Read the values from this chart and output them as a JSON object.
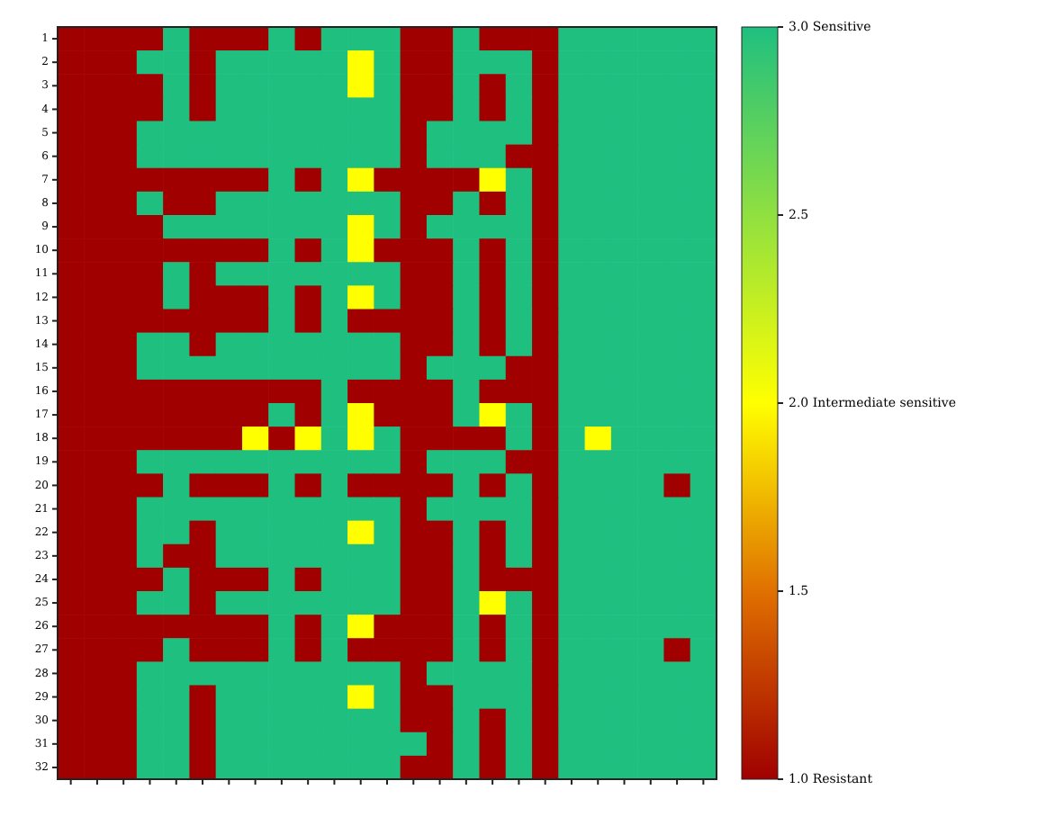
{
  "chart_data": {
    "type": "heatmap",
    "categories": [
      null,
      null,
      null,
      null,
      null,
      null,
      null,
      null,
      null,
      null,
      null,
      null,
      null,
      null,
      null,
      null,
      null,
      null,
      null,
      null,
      null,
      null,
      null,
      null,
      null
    ],
    "y_categories": [
      "1",
      "2",
      "3",
      "4",
      "5",
      "6",
      "7",
      "8",
      "9",
      "10",
      "11",
      "12",
      "13",
      "14",
      "15",
      "16",
      "17",
      "18",
      "19",
      "20",
      "21",
      "22",
      "23",
      "24",
      "25",
      "26",
      "27",
      "28",
      "29",
      "30",
      "31",
      "32"
    ],
    "cells": [
      [
        1,
        1,
        1,
        1,
        3,
        1,
        1,
        1,
        3,
        1,
        3,
        3,
        3,
        1,
        1,
        3,
        1,
        1,
        1,
        3,
        3,
        3,
        3,
        3,
        3
      ],
      [
        1,
        1,
        1,
        3,
        3,
        1,
        3,
        3,
        3,
        3,
        3,
        2,
        3,
        1,
        1,
        3,
        3,
        3,
        1,
        3,
        3,
        3,
        3,
        3,
        3
      ],
      [
        1,
        1,
        1,
        1,
        3,
        1,
        3,
        3,
        3,
        3,
        3,
        2,
        3,
        1,
        1,
        3,
        1,
        3,
        1,
        3,
        3,
        3,
        3,
        3,
        3
      ],
      [
        1,
        1,
        1,
        1,
        3,
        1,
        3,
        3,
        3,
        3,
        3,
        3,
        3,
        1,
        1,
        3,
        1,
        3,
        1,
        3,
        3,
        3,
        3,
        3,
        3
      ],
      [
        1,
        1,
        1,
        3,
        3,
        3,
        3,
        3,
        3,
        3,
        3,
        3,
        3,
        1,
        3,
        3,
        3,
        3,
        1,
        3,
        3,
        3,
        3,
        3,
        3
      ],
      [
        1,
        1,
        1,
        3,
        3,
        3,
        3,
        3,
        3,
        3,
        3,
        3,
        3,
        1,
        3,
        3,
        3,
        1,
        1,
        3,
        3,
        3,
        3,
        3,
        3
      ],
      [
        1,
        1,
        1,
        1,
        1,
        1,
        1,
        1,
        3,
        1,
        3,
        2,
        1,
        1,
        1,
        1,
        2,
        3,
        1,
        3,
        3,
        3,
        3,
        3,
        3
      ],
      [
        1,
        1,
        1,
        3,
        1,
        1,
        3,
        3,
        3,
        3,
        3,
        3,
        3,
        1,
        1,
        3,
        1,
        3,
        1,
        3,
        3,
        3,
        3,
        3,
        3
      ],
      [
        1,
        1,
        1,
        1,
        3,
        3,
        3,
        3,
        3,
        3,
        3,
        2,
        3,
        1,
        3,
        3,
        3,
        3,
        1,
        3,
        3,
        3,
        3,
        3,
        3
      ],
      [
        1,
        1,
        1,
        1,
        1,
        1,
        1,
        1,
        3,
        1,
        3,
        2,
        1,
        1,
        1,
        3,
        1,
        3,
        1,
        3,
        3,
        3,
        3,
        3,
        3
      ],
      [
        1,
        1,
        1,
        1,
        3,
        1,
        3,
        3,
        3,
        3,
        3,
        3,
        3,
        1,
        1,
        3,
        1,
        3,
        1,
        3,
        3,
        3,
        3,
        3,
        3
      ],
      [
        1,
        1,
        1,
        1,
        3,
        1,
        1,
        1,
        3,
        1,
        3,
        2,
        3,
        1,
        1,
        3,
        1,
        3,
        1,
        3,
        3,
        3,
        3,
        3,
        3
      ],
      [
        1,
        1,
        1,
        1,
        1,
        1,
        1,
        1,
        3,
        1,
        3,
        1,
        1,
        1,
        1,
        3,
        1,
        3,
        1,
        3,
        3,
        3,
        3,
        3,
        3
      ],
      [
        1,
        1,
        1,
        3,
        3,
        1,
        3,
        3,
        3,
        3,
        3,
        3,
        3,
        1,
        1,
        3,
        1,
        3,
        1,
        3,
        3,
        3,
        3,
        3,
        3
      ],
      [
        1,
        1,
        1,
        3,
        3,
        3,
        3,
        3,
        3,
        3,
        3,
        3,
        3,
        1,
        3,
        3,
        3,
        1,
        1,
        3,
        3,
        3,
        3,
        3,
        3
      ],
      [
        1,
        1,
        1,
        1,
        1,
        1,
        1,
        1,
        1,
        1,
        3,
        1,
        1,
        1,
        1,
        3,
        1,
        1,
        1,
        3,
        3,
        3,
        3,
        3,
        3
      ],
      [
        1,
        1,
        1,
        1,
        1,
        1,
        1,
        1,
        3,
        1,
        3,
        2,
        1,
        1,
        1,
        3,
        2,
        3,
        1,
        3,
        3,
        3,
        3,
        3,
        3
      ],
      [
        1,
        1,
        1,
        1,
        1,
        1,
        1,
        2,
        1,
        2,
        3,
        2,
        3,
        1,
        1,
        1,
        1,
        3,
        1,
        3,
        2,
        3,
        3,
        3,
        3
      ],
      [
        1,
        1,
        1,
        3,
        3,
        3,
        3,
        3,
        3,
        3,
        3,
        3,
        3,
        1,
        3,
        3,
        3,
        1,
        1,
        3,
        3,
        3,
        3,
        3,
        3
      ],
      [
        1,
        1,
        1,
        1,
        3,
        1,
        1,
        1,
        3,
        1,
        3,
        1,
        1,
        1,
        1,
        3,
        1,
        3,
        1,
        3,
        3,
        3,
        3,
        1,
        3
      ],
      [
        1,
        1,
        1,
        3,
        3,
        3,
        3,
        3,
        3,
        3,
        3,
        3,
        3,
        1,
        3,
        3,
        3,
        3,
        1,
        3,
        3,
        3,
        3,
        3,
        3
      ],
      [
        1,
        1,
        1,
        3,
        3,
        1,
        3,
        3,
        3,
        3,
        3,
        2,
        3,
        1,
        1,
        3,
        1,
        3,
        1,
        3,
        3,
        3,
        3,
        3,
        3
      ],
      [
        1,
        1,
        1,
        3,
        1,
        1,
        3,
        3,
        3,
        3,
        3,
        3,
        3,
        1,
        1,
        3,
        1,
        3,
        1,
        3,
        3,
        3,
        3,
        3,
        3
      ],
      [
        1,
        1,
        1,
        1,
        3,
        1,
        1,
        1,
        3,
        1,
        3,
        3,
        3,
        1,
        1,
        3,
        1,
        1,
        1,
        3,
        3,
        3,
        3,
        3,
        3
      ],
      [
        1,
        1,
        1,
        3,
        3,
        1,
        3,
        3,
        3,
        3,
        3,
        3,
        3,
        1,
        1,
        3,
        2,
        3,
        1,
        3,
        3,
        3,
        3,
        3,
        3
      ],
      [
        1,
        1,
        1,
        1,
        1,
        1,
        1,
        1,
        3,
        1,
        3,
        2,
        1,
        1,
        1,
        3,
        1,
        3,
        1,
        3,
        3,
        3,
        3,
        3,
        3
      ],
      [
        1,
        1,
        1,
        1,
        3,
        1,
        1,
        1,
        3,
        1,
        3,
        1,
        1,
        1,
        1,
        3,
        1,
        3,
        1,
        3,
        3,
        3,
        3,
        1,
        3
      ],
      [
        1,
        1,
        1,
        3,
        3,
        3,
        3,
        3,
        3,
        3,
        3,
        3,
        3,
        1,
        3,
        3,
        3,
        3,
        1,
        3,
        3,
        3,
        3,
        3,
        3
      ],
      [
        1,
        1,
        1,
        3,
        3,
        1,
        3,
        3,
        3,
        3,
        3,
        2,
        3,
        1,
        1,
        3,
        3,
        3,
        1,
        3,
        3,
        3,
        3,
        3,
        3
      ],
      [
        1,
        1,
        1,
        3,
        3,
        1,
        3,
        3,
        3,
        3,
        3,
        3,
        3,
        1,
        1,
        3,
        1,
        3,
        1,
        3,
        3,
        3,
        3,
        3,
        3
      ],
      [
        1,
        1,
        1,
        3,
        3,
        1,
        3,
        3,
        3,
        3,
        3,
        3,
        3,
        3,
        1,
        3,
        1,
        3,
        1,
        3,
        3,
        3,
        3,
        3,
        3
      ],
      [
        1,
        1,
        1,
        3,
        3,
        1,
        3,
        3,
        3,
        3,
        3,
        3,
        3,
        1,
        1,
        3,
        1,
        3,
        1,
        3,
        3,
        3,
        3,
        3,
        3
      ]
    ],
    "clim": [
      1,
      3
    ],
    "cticks": [
      {
        "value": 1,
        "label": "1.0 Resistant"
      },
      {
        "value": 1.5,
        "label": "1.5"
      },
      {
        "value": 2,
        "label": "2.0 Intermediate sensitive"
      },
      {
        "value": 2.5,
        "label": "2.5"
      },
      {
        "value": 3,
        "label": "3.0 Sensitive"
      }
    ]
  }
}
